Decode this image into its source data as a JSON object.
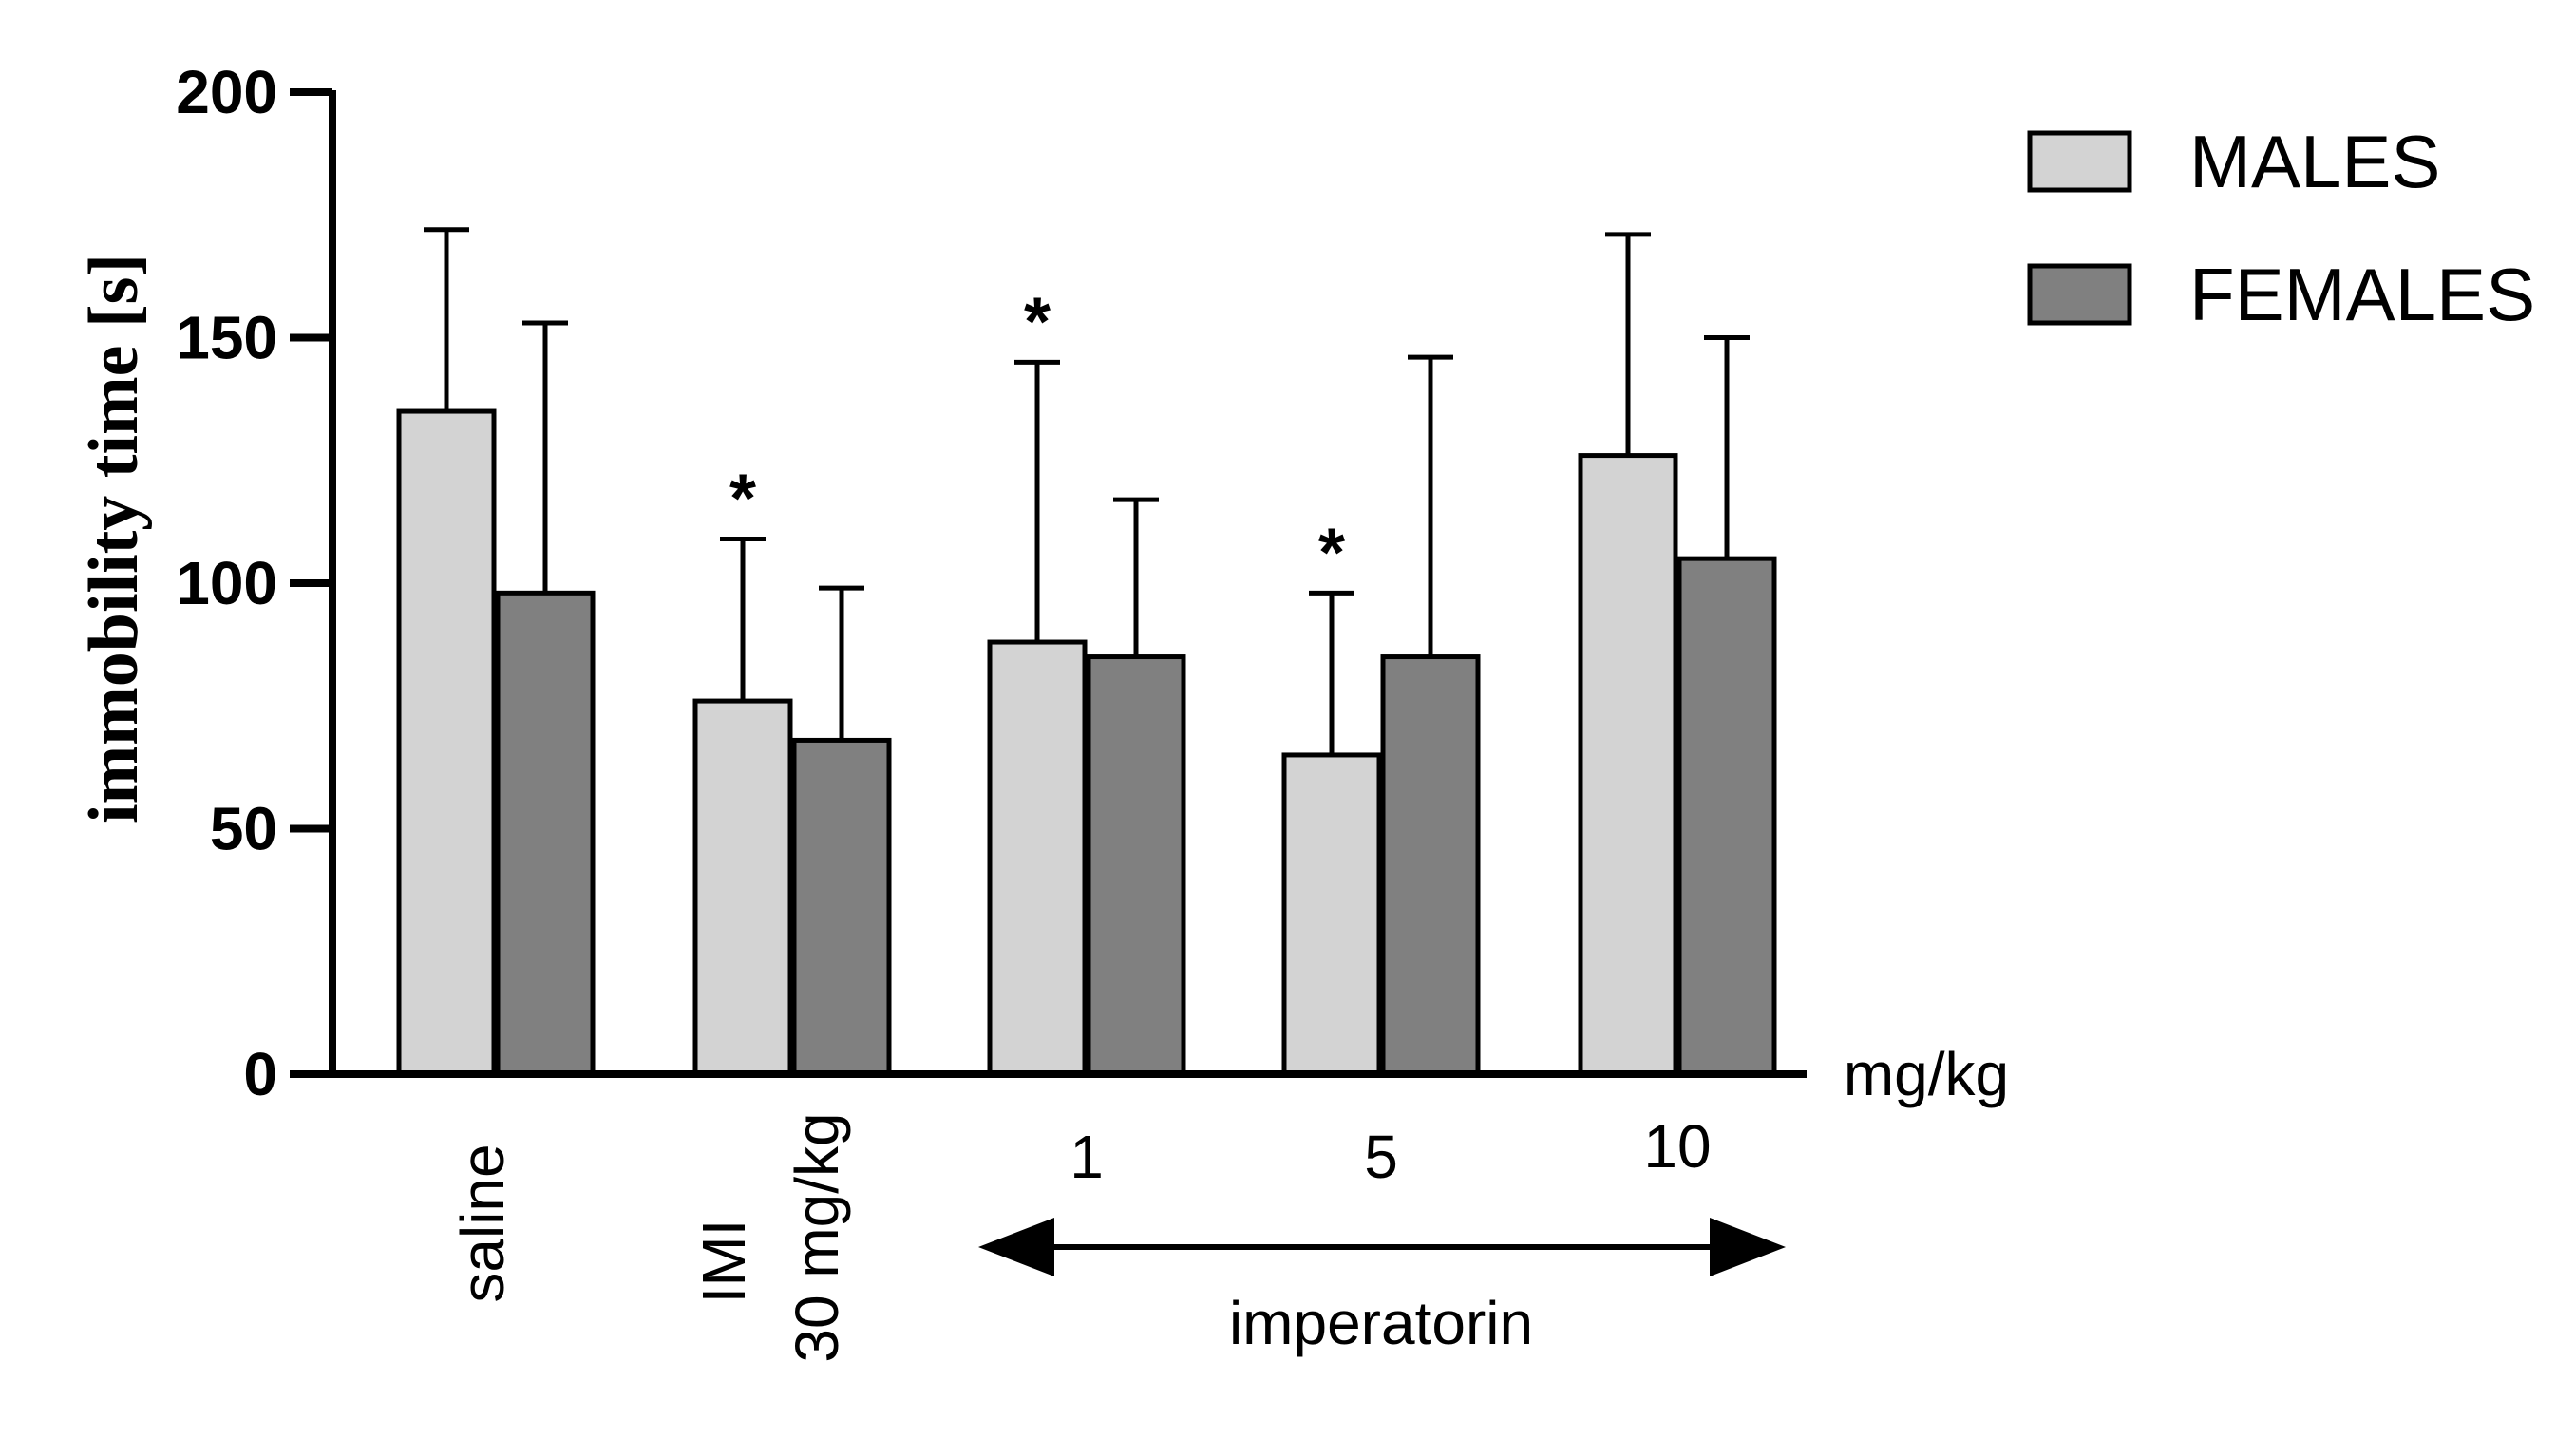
{
  "chart_data": {
    "type": "bar",
    "title": "",
    "xlabel": "",
    "ylabel": "immobility time [s]",
    "ylim": [
      0,
      200
    ],
    "yticks": [
      0,
      50,
      100,
      150,
      200
    ],
    "x_unit": "mg/kg",
    "categories": [
      "saline",
      "IMI\n30 mg/kg",
      "1",
      "5",
      "10"
    ],
    "category_group": {
      "label": "imperatorin",
      "members": [
        "1",
        "5",
        "10"
      ]
    },
    "series": [
      {
        "name": "MALES",
        "color": "#d3d3d3",
        "values": [
          135,
          76,
          88,
          65,
          126
        ],
        "errors": [
          37,
          33,
          57,
          33,
          45
        ],
        "significance": [
          "",
          "*",
          "*",
          "*",
          ""
        ]
      },
      {
        "name": "FEMALES",
        "color": "#808080",
        "values": [
          98,
          68,
          85,
          85,
          105
        ],
        "errors": [
          55,
          31,
          32,
          61,
          45
        ],
        "significance": [
          "",
          "",
          "",
          "",
          ""
        ]
      }
    ],
    "legend_position": "top-right"
  }
}
